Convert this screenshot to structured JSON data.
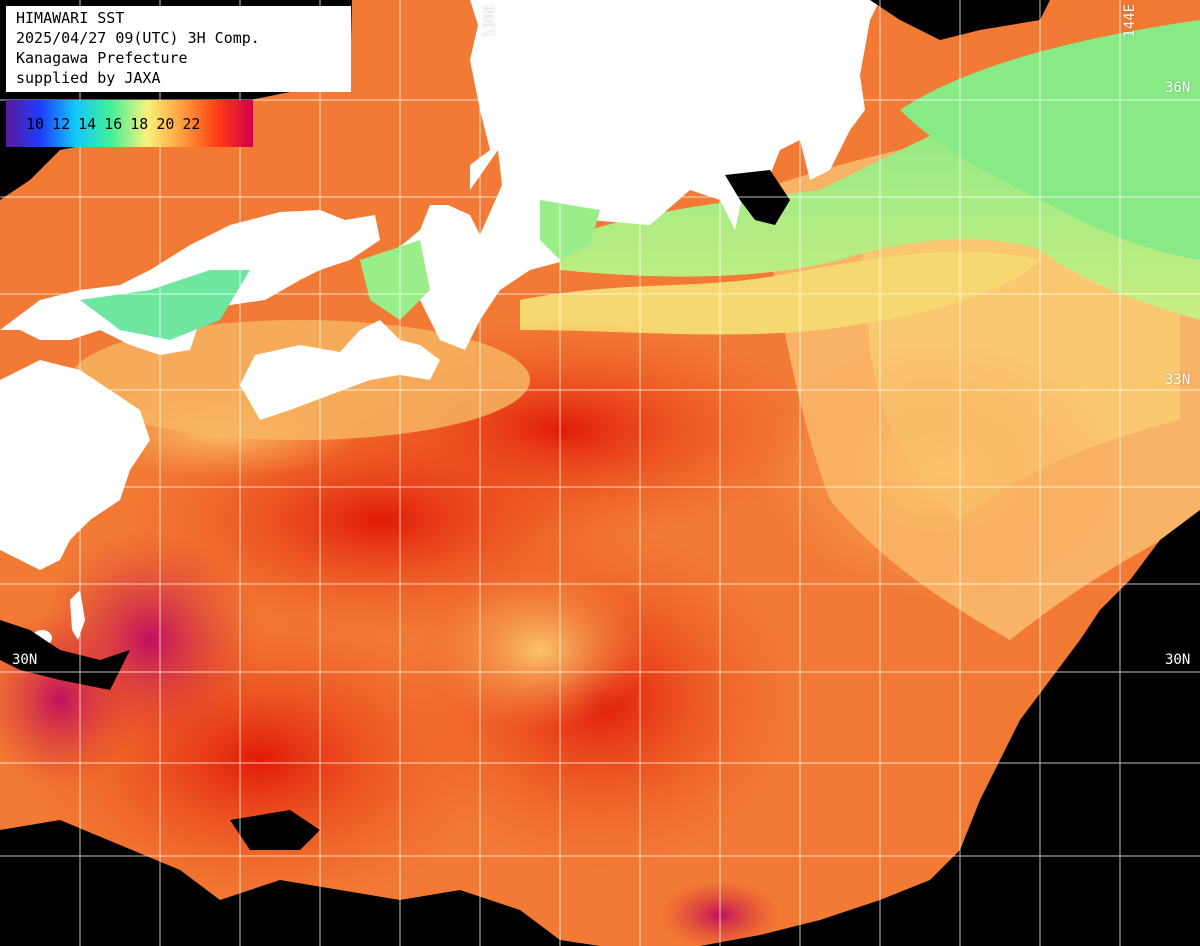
{
  "header": {
    "line1": "HIMAWARI SST",
    "line2": "2025/04/27 09(UTC) 3H Comp.",
    "line3": "Kanagawa Prefecture",
    "line4": "supplied by JAXA"
  },
  "legend": {
    "labels": [
      "10",
      "12",
      "14",
      "16",
      "18",
      "20",
      "22"
    ],
    "colors": [
      "#5a1a9a",
      "#1e3cff",
      "#12c8ff",
      "#3ef09a",
      "#f8f27a",
      "#ff9a3a",
      "#ff3a12",
      "#d0004a"
    ]
  },
  "grid_labels": {
    "lon_136": "136E",
    "lon_144": "144E",
    "lat_36_right": "36N",
    "lat_33_right": "33N",
    "lat_30_left": "30N",
    "lat_30_right": "30N"
  },
  "colors": {
    "land": "#ffffff",
    "no_data": "#000000",
    "grid": "#ffffff",
    "warm_core": "#e42a0c",
    "warm": "#f36a2a",
    "mild": "#f9a85a",
    "cool": "#f7e07a",
    "cold": "#8fe88a",
    "coldest": "#4fe0b0",
    "hot_purple": "#c2185b"
  }
}
